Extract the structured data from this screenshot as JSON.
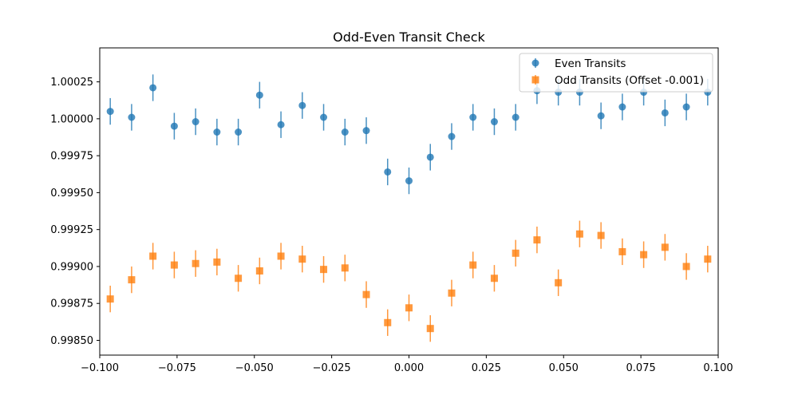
{
  "chart_data": {
    "type": "scatter",
    "title": "Odd-Even Transit Check",
    "xlabel": "",
    "ylabel": "",
    "xlim": [
      -0.1,
      0.1
    ],
    "ylim": [
      0.9984,
      1.00048
    ],
    "x_ticks": [
      -0.1,
      -0.075,
      -0.05,
      -0.025,
      0.0,
      0.025,
      0.05,
      0.075,
      0.1
    ],
    "x_tick_labels": [
      "−0.100",
      "−0.075",
      "−0.050",
      "−0.025",
      "0.000",
      "0.025",
      "0.050",
      "0.075",
      "0.100"
    ],
    "y_ticks": [
      0.9985,
      0.99875,
      0.999,
      0.99925,
      0.9995,
      0.99975,
      1.0,
      1.00025
    ],
    "y_tick_labels": [
      "0.99850",
      "0.99875",
      "0.99900",
      "0.99925",
      "0.99950",
      "0.99975",
      "1.00000",
      "1.00025"
    ],
    "grid": false,
    "legend_position": "top-right",
    "series": [
      {
        "name": "Even Transits",
        "marker": "circle",
        "color": "#1f77b4",
        "error": 9e-05,
        "x": [
          -0.0966,
          -0.0897,
          -0.0828,
          -0.0759,
          -0.069,
          -0.0621,
          -0.0552,
          -0.0483,
          -0.0414,
          -0.0345,
          -0.0276,
          -0.0207,
          -0.0138,
          -0.0069,
          0.0,
          0.0069,
          0.0138,
          0.0207,
          0.0276,
          0.0345,
          0.0414,
          0.0483,
          0.0552,
          0.0621,
          0.069,
          0.0759,
          0.0828,
          0.0897,
          0.0966
        ],
        "y": [
          1.00005,
          1.00001,
          1.00021,
          0.99995,
          0.99998,
          0.99991,
          0.99991,
          1.00016,
          0.99996,
          1.00009,
          1.00001,
          0.99991,
          0.99992,
          0.99964,
          0.99958,
          0.99974,
          0.99988,
          1.00001,
          0.99998,
          1.00001,
          1.00019,
          1.00018,
          1.00018,
          1.00002,
          1.00008,
          1.00018,
          1.00004,
          1.00008,
          1.00018
        ]
      },
      {
        "name": "Odd Transits (Offset -0.001)",
        "marker": "square",
        "color": "#ff7f0e",
        "error": 9e-05,
        "x": [
          -0.0966,
          -0.0897,
          -0.0828,
          -0.0759,
          -0.069,
          -0.0621,
          -0.0552,
          -0.0483,
          -0.0414,
          -0.0345,
          -0.0276,
          -0.0207,
          -0.0138,
          -0.0069,
          0.0,
          0.0069,
          0.0138,
          0.0207,
          0.0276,
          0.0345,
          0.0414,
          0.0483,
          0.0552,
          0.0621,
          0.069,
          0.0759,
          0.0828,
          0.0897,
          0.0966
        ],
        "y": [
          0.99878,
          0.99891,
          0.99907,
          0.99901,
          0.99902,
          0.99903,
          0.99892,
          0.99897,
          0.99907,
          0.99905,
          0.99898,
          0.99899,
          0.99881,
          0.99862,
          0.99872,
          0.99858,
          0.99882,
          0.99901,
          0.99892,
          0.99909,
          0.99918,
          0.99889,
          0.99922,
          0.99921,
          0.9991,
          0.99908,
          0.99913,
          0.999,
          0.99905
        ]
      }
    ]
  }
}
